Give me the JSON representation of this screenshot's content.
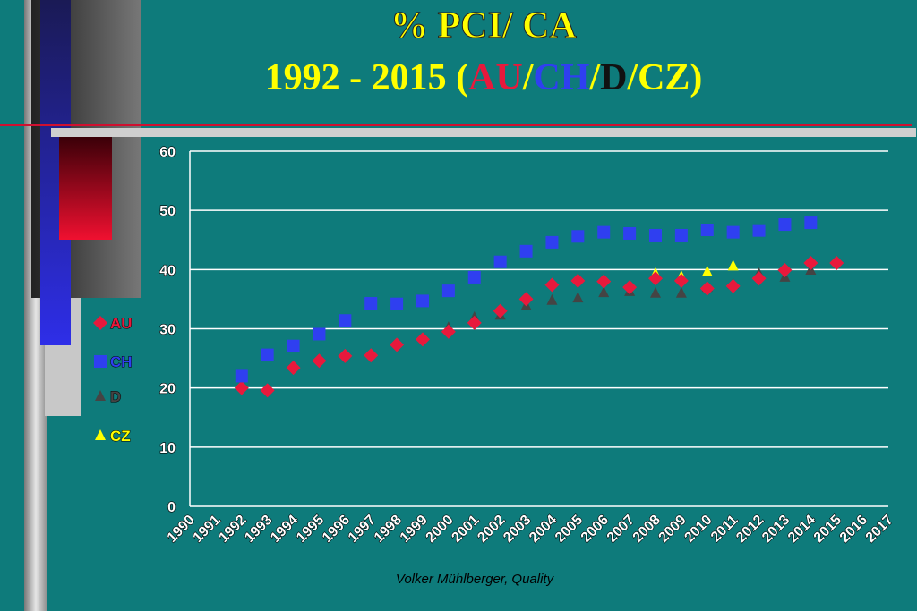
{
  "chart_data": {
    "type": "scatter",
    "title": "%  PCI/ CA",
    "subtitle": [
      "1992 - 2015  (",
      "AU",
      "/",
      "CH",
      "/",
      "D",
      "/CZ)"
    ],
    "footer": "Volker Mühlberger, Quality",
    "x": [
      1992,
      1993,
      1994,
      1995,
      1996,
      1997,
      1998,
      1999,
      2000,
      2001,
      2002,
      2003,
      2004,
      2005,
      2006,
      2007,
      2008,
      2009,
      2010,
      2011,
      2012,
      2013,
      2014,
      2015
    ],
    "xlim": [
      1990,
      2017
    ],
    "xticks": [
      1990,
      1991,
      1992,
      1993,
      1994,
      1995,
      1996,
      1997,
      1998,
      1999,
      2000,
      2001,
      2002,
      2003,
      2004,
      2005,
      2006,
      2007,
      2008,
      2009,
      2010,
      2011,
      2012,
      2013,
      2014,
      2015,
      2016,
      2017
    ],
    "ylim": [
      0,
      60
    ],
    "yticks": [
      0,
      10,
      20,
      30,
      40,
      50,
      60
    ],
    "grid": true,
    "legend": "left",
    "series": [
      {
        "name": "AU",
        "color": "#e8193c",
        "marker": "diamond",
        "values": [
          20,
          19.6,
          23.4,
          24.6,
          25.4,
          25.5,
          27.3,
          28.2,
          29.5,
          31,
          33,
          35,
          37.4,
          38.1,
          38,
          37,
          38.5,
          38.1,
          36.8,
          37.2,
          38.5,
          39.9,
          41.1,
          41.1
        ]
      },
      {
        "name": "CH",
        "color": "#2f3ff0",
        "marker": "square",
        "values": [
          22,
          25.6,
          27.1,
          29.1,
          31.4,
          34.3,
          34.2,
          34.7,
          36.4,
          38.7,
          41.3,
          43.1,
          44.6,
          45.6,
          46.3,
          46.1,
          45.8,
          45.8,
          46.7,
          46.3,
          46.6,
          47.6,
          47.9,
          null
        ]
      },
      {
        "name": "D",
        "color": "#444444",
        "marker": "triangle",
        "values": [
          null,
          null,
          null,
          null,
          null,
          null,
          null,
          null,
          30.2,
          31.9,
          32.3,
          33.9,
          34.8,
          35.2,
          36.1,
          36.3,
          36,
          36,
          37,
          37.5,
          39.3,
          38.7,
          39.9,
          null
        ]
      },
      {
        "name": "CZ",
        "color": "#ffff00",
        "marker": "triangle",
        "values": [
          null,
          null,
          null,
          null,
          null,
          null,
          null,
          null,
          null,
          null,
          null,
          null,
          null,
          null,
          null,
          null,
          39.3,
          38.8,
          39.6,
          40.6,
          null,
          null,
          null,
          null
        ]
      }
    ]
  }
}
